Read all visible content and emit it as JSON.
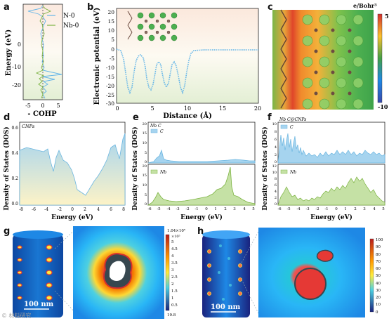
{
  "panels": {
    "a": {
      "label": "a",
      "ylabel": "Energy (eV)",
      "xlabel": "- COHP",
      "legend": [
        "N-0",
        "Nb-0"
      ],
      "yticks": [
        "0",
        "-10",
        "-20"
      ],
      "xticks": [
        "-5",
        "0",
        "5"
      ],
      "colors": {
        "n0": "#63b5e8",
        "nb0": "#7cb342"
      }
    },
    "b": {
      "label": "b",
      "ylabel": "Electronic potential (eV)",
      "xlabel": "Distance (Å)",
      "yticks": [
        "20",
        "15",
        "10",
        "5",
        "0",
        "-5",
        "-10",
        "-15",
        "-20",
        "-25",
        "-30"
      ],
      "xticks": [
        "0",
        "5",
        "10",
        "15",
        "20"
      ]
    },
    "c": {
      "label": "c",
      "unit": "e/Bohr³",
      "cbar_max": "5",
      "cbar_min": "-10"
    },
    "d": {
      "label": "d",
      "sublabel": "CNPs",
      "ylabel": "Density of States (DOS)",
      "xlabel": "Energy (eV)",
      "xticks": [
        "-8",
        "-6",
        "-4",
        "-2",
        "0",
        "2",
        "4",
        "6",
        "8"
      ],
      "yticks": [
        "0.0",
        "0.2",
        "0.4",
        "0.6"
      ]
    },
    "e": {
      "label": "e",
      "sublabel": "Nb C",
      "ylabel": "Density of States (DOS)",
      "xlabel": "Energy (eV)",
      "legend_top": "C",
      "legend_bottom": "Nb",
      "xticks": [
        "-6",
        "-5",
        "-4",
        "-3",
        "-2",
        "-1",
        "0",
        "1",
        "2",
        "3",
        "4",
        "5"
      ],
      "yticks_top": [
        "0",
        "5",
        "10",
        "15",
        "20"
      ],
      "yticks_bottom": [
        "0",
        "5",
        "10",
        "15",
        "20"
      ]
    },
    "f": {
      "label": "f",
      "sublabel": "Nb C@CNPs",
      "ylabel": "Density of States (DOS)",
      "xlabel": "Energy (eV)",
      "legend_top": "C",
      "legend_bottom": "Nb",
      "xticks": [
        "-6",
        "-5",
        "-4",
        "-3",
        "-2",
        "-1",
        "0",
        "1",
        "2",
        "3",
        "4",
        "5"
      ],
      "yticks_top": [
        "0",
        "2",
        "4",
        "6",
        "8",
        "10"
      ],
      "yticks_bottom": [
        "0",
        "2",
        "4",
        "6",
        "8",
        "10",
        "12"
      ]
    },
    "g": {
      "label": "g",
      "scalebar": "100 nm",
      "cbar_top": "1.04×10⁵",
      "cbar_exp": "×10⁵",
      "cbar_ticks": [
        "5",
        "4.5",
        "4",
        "3.5",
        "3",
        "2.5",
        "2",
        "1.5",
        "1",
        "0.5"
      ],
      "cbar_bottom": "19.8"
    },
    "h": {
      "label": "h",
      "scalebar": "100 nm",
      "cbar_ticks": [
        "100",
        "90",
        "80",
        "70",
        "60",
        "50",
        "40",
        "30",
        "20",
        "10",
        "0"
      ]
    }
  },
  "watermark": "© 材料研究"
}
